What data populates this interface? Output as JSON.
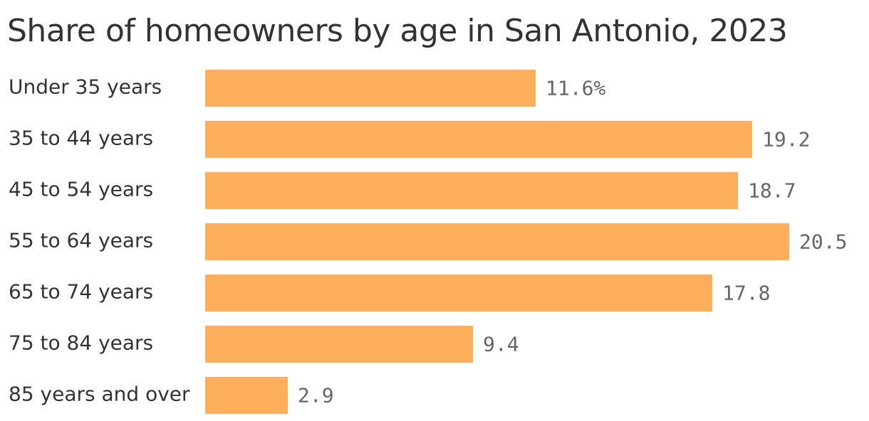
{
  "chart_data": {
    "type": "bar",
    "orientation": "horizontal",
    "title": "Share of homeowners by age in San Antonio, 2023",
    "categories": [
      "Under 35 years",
      "35 to 44 years",
      "45 to 54 years",
      "55 to 64 years",
      "65 to 74 years",
      "75 to 84 years",
      "85 years and over"
    ],
    "values": [
      11.6,
      19.2,
      18.7,
      20.5,
      17.8,
      9.4,
      2.9
    ],
    "value_labels": [
      "11.6%",
      "19.2",
      "18.7",
      "20.5",
      "17.8",
      "9.4",
      "2.9"
    ],
    "xlim": [
      0,
      20.5
    ],
    "grid": false,
    "legend": "none",
    "bar_color": "#ffae5c",
    "label_color": "#333333",
    "value_label_color": "#666666"
  }
}
